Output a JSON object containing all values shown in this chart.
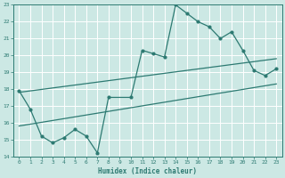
{
  "xlabel": "Humidex (Indice chaleur)",
  "xlim": [
    -0.5,
    23.5
  ],
  "ylim": [
    14,
    23
  ],
  "xticks": [
    0,
    1,
    2,
    3,
    4,
    5,
    6,
    7,
    8,
    9,
    10,
    11,
    12,
    13,
    14,
    15,
    16,
    17,
    18,
    19,
    20,
    21,
    22,
    23
  ],
  "yticks": [
    14,
    15,
    16,
    17,
    18,
    19,
    20,
    21,
    22,
    23
  ],
  "bg_color": "#cce8e4",
  "grid_color": "#ffffff",
  "line_color": "#2d7a72",
  "zigzag": {
    "x": [
      0,
      1,
      2,
      3,
      4,
      5,
      6,
      7,
      8,
      10,
      11,
      12,
      13,
      14,
      15,
      16,
      17,
      18,
      19,
      20,
      21,
      22,
      23
    ],
    "y": [
      17.9,
      16.8,
      15.2,
      14.8,
      15.1,
      15.6,
      15.2,
      14.2,
      17.5,
      17.5,
      20.3,
      20.1,
      19.9,
      23.0,
      22.5,
      22.0,
      21.7,
      21.0,
      21.4,
      20.3,
      19.1,
      18.8,
      19.2
    ]
  },
  "line1": {
    "x": [
      0,
      23
    ],
    "y": [
      17.8,
      19.8
    ]
  },
  "line2": {
    "x": [
      0,
      23
    ],
    "y": [
      15.8,
      18.3
    ]
  }
}
